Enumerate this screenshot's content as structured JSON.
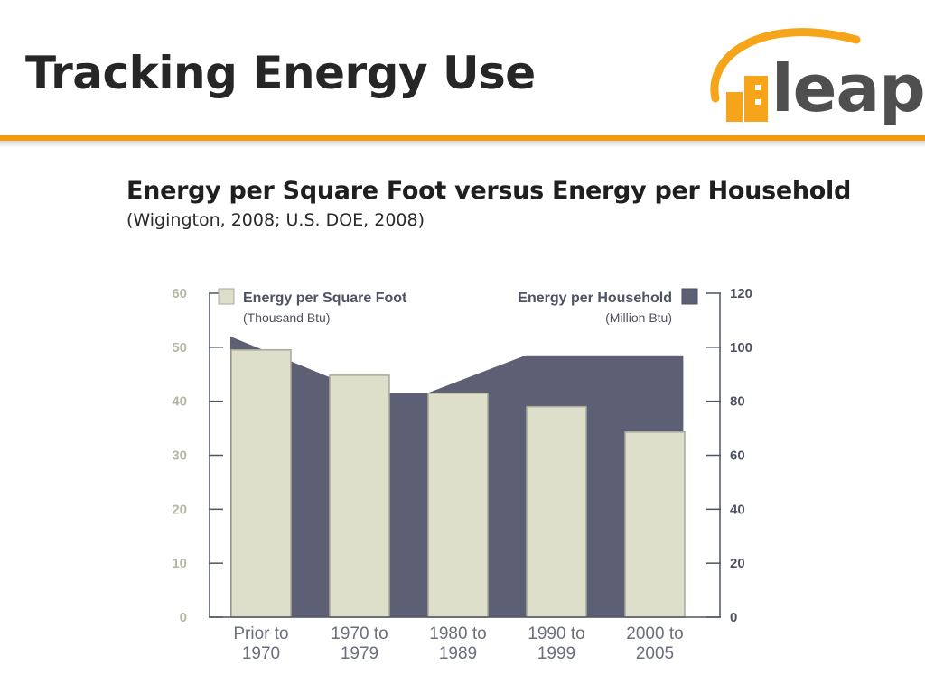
{
  "slide": {
    "title": "Tracking Energy Use",
    "logo_text": "leap",
    "accent_color": "#f29b10"
  },
  "chart_data": {
    "type": "bar",
    "title": "Energy per Square Foot versus Energy per Household",
    "subtitle": "(Wigington, 2008; U.S. DOE, 2008)",
    "categories": [
      [
        "Prior to",
        "1970"
      ],
      [
        "1970 to",
        "1979"
      ],
      [
        "1980 to",
        "1989"
      ],
      [
        "1990 to",
        "1999"
      ],
      [
        "2000 to",
        "2005"
      ]
    ],
    "left_axis": {
      "ticks": [
        "0",
        "10",
        "20",
        "30",
        "40",
        "50",
        "60"
      ],
      "ylim": [
        0,
        60
      ]
    },
    "right_axis": {
      "ticks": [
        "0",
        "20",
        "40",
        "60",
        "80",
        "100",
        "120"
      ],
      "ylim": [
        0,
        120
      ]
    },
    "series": [
      {
        "name": "Energy per Square Foot",
        "unit": "(Thousand Btu)",
        "type": "bar",
        "axis": "left",
        "values": [
          49.5,
          44.8,
          41.5,
          39.0,
          34.3
        ],
        "color": "#dedfcb"
      },
      {
        "name": "Energy per Household",
        "unit": "(Million Btu)",
        "type": "area",
        "axis": "right",
        "x": [
          0,
          0.6,
          1.4,
          2.0,
          3.0,
          3.7,
          4.6
        ],
        "values": [
          104,
          95,
          83,
          83,
          97,
          97,
          97
        ],
        "color": "#5d6074"
      }
    ],
    "grid": false,
    "legend": "top"
  }
}
